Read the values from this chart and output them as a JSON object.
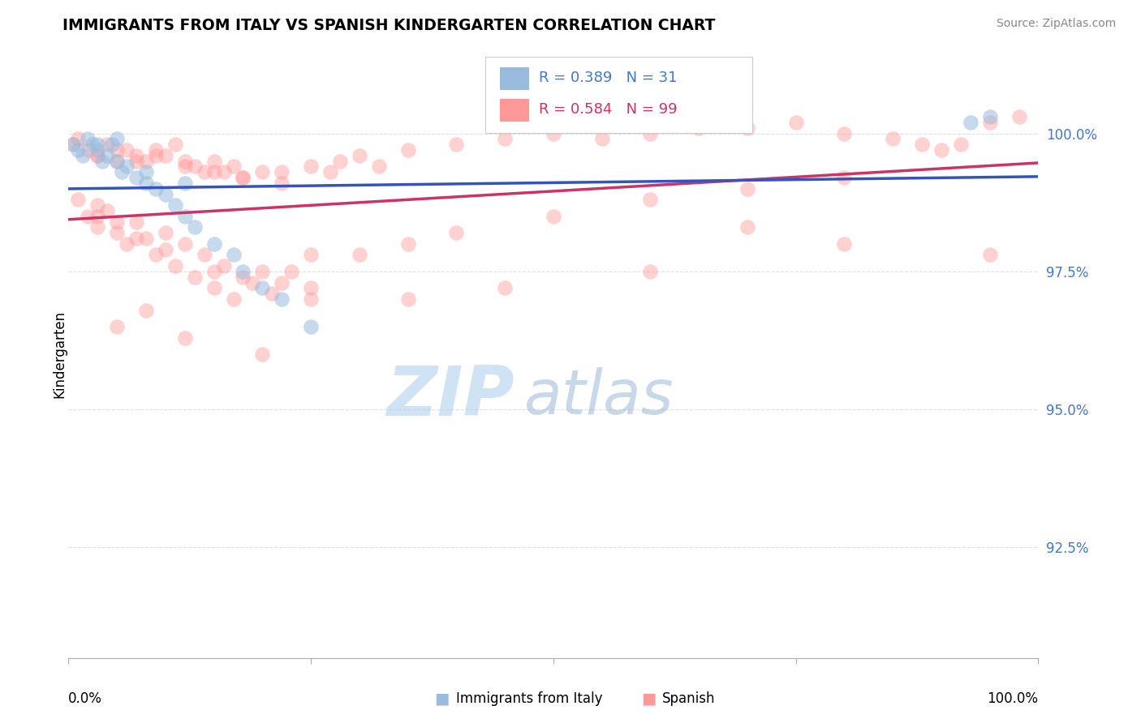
{
  "title": "IMMIGRANTS FROM ITALY VS SPANISH KINDERGARTEN CORRELATION CHART",
  "source_text": "Source: ZipAtlas.com",
  "ylabel": "Kindergarten",
  "blue_color": "#99BBDD",
  "pink_color": "#FF9999",
  "blue_line_color": "#3355BB",
  "pink_line_color": "#CC3366",
  "watermark_zip": "ZIP",
  "watermark_atlas": "atlas",
  "watermark_color_zip": "#AACCEE",
  "watermark_color_atlas": "#88AACC",
  "background_color": "#FFFFFF",
  "grid_color": "#DDDDDD",
  "r_blue": 0.389,
  "n_blue": 31,
  "r_pink": 0.584,
  "n_pink": 99,
  "ytick_color": "#4477CC",
  "legend_text_blue_color": "#4477CC",
  "legend_text_pink_color": "#CC3366",
  "legend_r_color": "#000000"
}
